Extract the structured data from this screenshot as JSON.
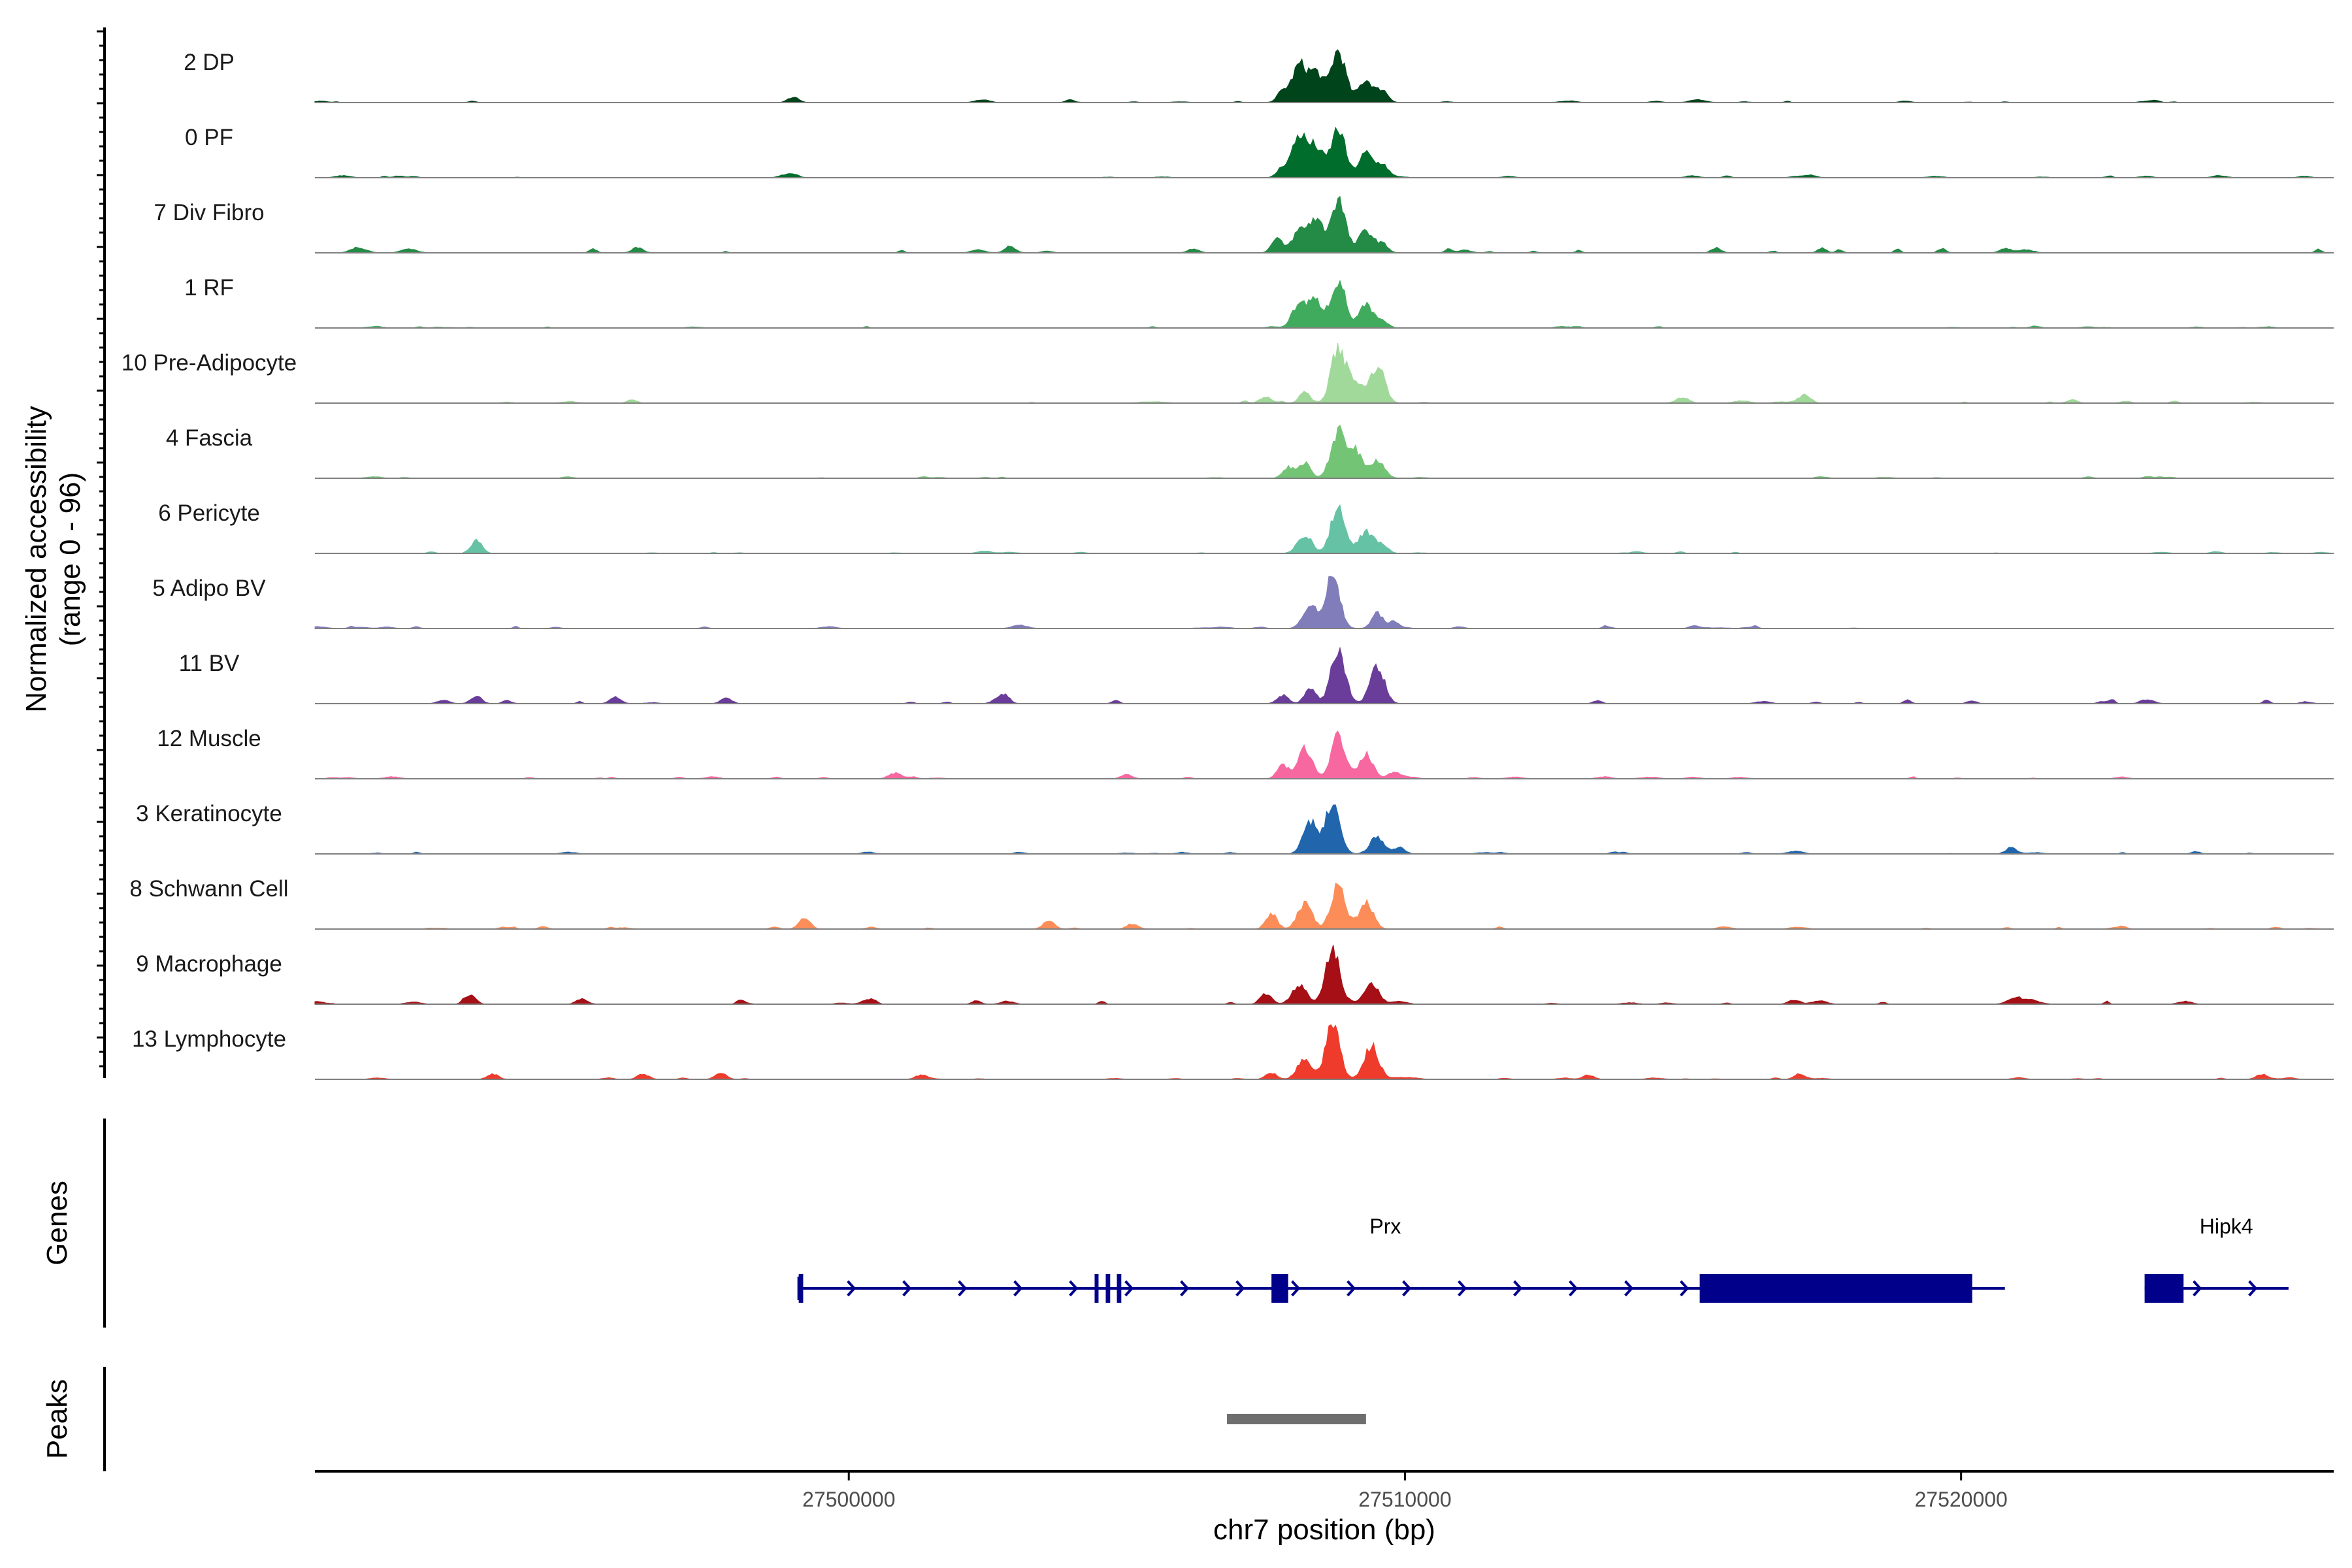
{
  "chart_data": {
    "type": "area",
    "ylabel": "Normalized accessibility",
    "ylabel_range": "(range 0 - 96)",
    "ylim": [
      0,
      96
    ],
    "xlabel": "chr7 position (bp)",
    "xlim": [
      27490400,
      27526700
    ],
    "x_ticks": [
      {
        "value": 27500000,
        "label": "27500000"
      },
      {
        "value": 27510000,
        "label": "27510000"
      },
      {
        "value": 27520000,
        "label": "27520000"
      }
    ],
    "tracks": [
      {
        "label": "2 DP",
        "color": "#00441b",
        "peaks": [
          [
            27508100,
            68
          ],
          [
            27508800,
            94
          ],
          [
            27508400,
            55
          ],
          [
            27509300,
            42
          ],
          [
            27509600,
            22
          ],
          [
            27507800,
            20
          ],
          [
            27499000,
            10
          ],
          [
            27513000,
            3
          ],
          [
            27519000,
            3
          ]
        ],
        "noise": 2
      },
      {
        "label": "0 PF",
        "color": "#006d2c",
        "peaks": [
          [
            27508100,
            78
          ],
          [
            27508800,
            90
          ],
          [
            27508400,
            52
          ],
          [
            27509300,
            46
          ],
          [
            27509600,
            24
          ],
          [
            27507800,
            18
          ],
          [
            27499000,
            6
          ]
        ],
        "noise": 3
      },
      {
        "label": "7 Div Fibro",
        "color": "#238b45",
        "peaks": [
          [
            27508100,
            40
          ],
          [
            27508800,
            100
          ],
          [
            27508400,
            62
          ],
          [
            27509300,
            42
          ],
          [
            27509600,
            16
          ],
          [
            27507700,
            26
          ],
          [
            27496200,
            10
          ],
          [
            27502900,
            12
          ],
          [
            27506200,
            8
          ],
          [
            27520800,
            8
          ]
        ],
        "noise": 8
      },
      {
        "label": "1 RF",
        "color": "#41ab5d",
        "peaks": [
          [
            27508100,
            45
          ],
          [
            27508800,
            88
          ],
          [
            27508400,
            48
          ],
          [
            27509300,
            42
          ],
          [
            27509600,
            12
          ]
        ],
        "noise": 2
      },
      {
        "label": "10 Pre-Adipocyte",
        "color": "#a1d99b",
        "peaks": [
          [
            27508800,
            100
          ],
          [
            27509500,
            70
          ],
          [
            27509100,
            40
          ],
          [
            27508200,
            20
          ],
          [
            27507500,
            10
          ],
          [
            27517200,
            16
          ],
          [
            27515000,
            7
          ],
          [
            27522000,
            6
          ]
        ],
        "noise": 4
      },
      {
        "label": "4 Fascia",
        "color": "#74c476",
        "peaks": [
          [
            27508200,
            30
          ],
          [
            27508800,
            85
          ],
          [
            27509100,
            48
          ],
          [
            27509500,
            34
          ],
          [
            27507900,
            20
          ]
        ],
        "noise": 2
      },
      {
        "label": "6 Pericyte",
        "color": "#66c2a4",
        "peaks": [
          [
            27508800,
            88
          ],
          [
            27508200,
            35
          ],
          [
            27509300,
            42
          ],
          [
            27509600,
            16
          ],
          [
            27493300,
            24
          ]
        ],
        "noise": 2
      },
      {
        "label": "5 Adipo BV",
        "color": "#807dba",
        "peaks": [
          [
            27508700,
            96
          ],
          [
            27508300,
            44
          ],
          [
            27509500,
            28
          ],
          [
            27509800,
            12
          ]
        ],
        "noise": 3
      },
      {
        "label": "11 BV",
        "color": "#6a3d9a",
        "peaks": [
          [
            27508800,
            100
          ],
          [
            27509500,
            72
          ],
          [
            27508300,
            30
          ],
          [
            27507800,
            16
          ],
          [
            27493300,
            14
          ],
          [
            27495800,
            12
          ],
          [
            27497800,
            10
          ],
          [
            27502800,
            10
          ]
        ],
        "noise": 6
      },
      {
        "label": "12 Muscle",
        "color": "#f768a1",
        "peaks": [
          [
            27508200,
            55
          ],
          [
            27508800,
            82
          ],
          [
            27509300,
            46
          ],
          [
            27507800,
            26
          ],
          [
            27509800,
            12
          ],
          [
            27500800,
            8
          ],
          [
            27505000,
            8
          ]
        ],
        "noise": 3
      },
      {
        "label": "3 Keratinocyte",
        "color": "#2166ac",
        "peaks": [
          [
            27508700,
            96
          ],
          [
            27508300,
            58
          ],
          [
            27509500,
            32
          ],
          [
            27509900,
            12
          ],
          [
            27520900,
            12
          ]
        ],
        "noise": 3
      },
      {
        "label": "8 Schwann Cell",
        "color": "#fc8d59",
        "peaks": [
          [
            27508200,
            48
          ],
          [
            27508800,
            82
          ],
          [
            27509300,
            48
          ],
          [
            27507600,
            30
          ],
          [
            27499200,
            22
          ],
          [
            27503600,
            16
          ],
          [
            27505100,
            10
          ]
        ],
        "noise": 4
      },
      {
        "label": "9 Macrophage",
        "color": "#a50f15",
        "peaks": [
          [
            27508700,
            100
          ],
          [
            27508100,
            36
          ],
          [
            27509400,
            38
          ],
          [
            27507500,
            20
          ],
          [
            27493200,
            14
          ],
          [
            27495200,
            10
          ],
          [
            27521000,
            10
          ],
          [
            27517000,
            8
          ]
        ],
        "noise": 6
      },
      {
        "label": "13 Lymphocyte",
        "color": "#ef3b2c",
        "peaks": [
          [
            27508700,
            100
          ],
          [
            27509400,
            62
          ],
          [
            27508200,
            40
          ],
          [
            27507600,
            12
          ],
          [
            27493600,
            10
          ],
          [
            27496300,
            10
          ],
          [
            27497700,
            12
          ],
          [
            27501300,
            8
          ],
          [
            27513300,
            8
          ],
          [
            27517100,
            10
          ],
          [
            27525400,
            8
          ]
        ],
        "noise": 2
      }
    ],
    "genes_label": "Genes",
    "genes": [
      {
        "name": "Prx",
        "strand": "+",
        "start": 27499100,
        "end": 27520200,
        "exons": [
          [
            27499100,
            27499180
          ],
          [
            27504420,
            27504480
          ],
          [
            27504620,
            27504700
          ],
          [
            27504820,
            27504900
          ],
          [
            27507600,
            27507900
          ],
          [
            27515300,
            27520200
          ]
        ]
      },
      {
        "name": "Hipk4",
        "strand": "+",
        "start": 27523300,
        "end": 27525300,
        "exons": [
          [
            27523300,
            27524000
          ]
        ]
      }
    ],
    "peaks_label": "Peaks",
    "peaks_track": [
      {
        "start": 27506800,
        "end": 27509300,
        "color": "#6e6e6e"
      }
    ],
    "gene_color": "#00008b"
  }
}
